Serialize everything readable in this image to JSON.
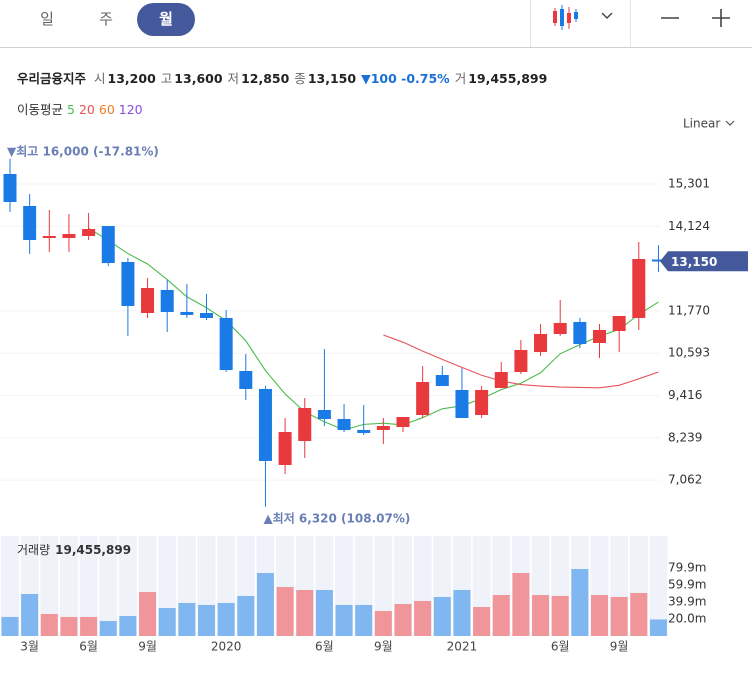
{
  "tabs": [
    "일",
    "주",
    "월"
  ],
  "selected_tab": 2,
  "header": {
    "name": "우리금융지주",
    "fields": [
      {
        "label": "시",
        "value": "13,200"
      },
      {
        "label": "고",
        "value": "13,600"
      },
      {
        "label": "저",
        "value": "12,850"
      },
      {
        "label": "종",
        "value": "13,150"
      }
    ],
    "change": "▼100 -0.75%",
    "volume_label": "거",
    "volume_value": "19,455,899"
  },
  "ma_title": "이동평균",
  "scale_mode": "Linear",
  "chart_data": {
    "type": "candlestick",
    "categories": [
      null,
      "3월",
      null,
      null,
      "6월",
      null,
      null,
      "9월",
      null,
      null,
      null,
      "2020",
      null,
      null,
      null,
      null,
      "6월",
      null,
      null,
      "9월",
      null,
      null,
      null,
      "2021",
      null,
      null,
      null,
      null,
      "6월",
      null,
      null,
      "9월",
      null,
      null
    ],
    "open": [
      15579,
      14689,
      13799,
      13799,
      13854,
      14132,
      13131,
      11712,
      12352,
      11740,
      11712,
      11573,
      10098,
      9598,
      7483,
      8151,
      9013,
      8763,
      8457,
      8457,
      8540,
      8874,
      9987,
      9570,
      8874,
      9626,
      10070,
      10627,
      11128,
      11462,
      10877,
      11211,
      11573,
      13200
    ],
    "high": [
      16000,
      15023,
      14578,
      14466,
      14494,
      14132,
      13242,
      12686,
      12630,
      12519,
      12241,
      11796,
      10571,
      9681,
      8790,
      9347,
      10710,
      9180,
      9152,
      8790,
      8818,
      10237,
      10237,
      10181,
      9681,
      10348,
      10961,
      11406,
      12074,
      11573,
      11406,
      11629,
      13687,
      13600
    ],
    "low": [
      14522,
      13354,
      13409,
      13409,
      13743,
      13020,
      11072,
      11573,
      11184,
      11573,
      11517,
      10070,
      9292,
      6320,
      7233,
      7678,
      8568,
      8401,
      8318,
      8068,
      8401,
      8790,
      9681,
      8790,
      8790,
      9626,
      10015,
      10516,
      11072,
      10738,
      10460,
      10627,
      11239,
      12850
    ],
    "close": [
      14800,
      13743,
      13854,
      13910,
      14049,
      13103,
      11907,
      12407,
      11740,
      11657,
      11573,
      10126,
      9598,
      7595,
      8401,
      9069,
      8763,
      8457,
      8374,
      8568,
      8818,
      9792,
      9681,
      8790,
      9570,
      10070,
      10683,
      11128,
      11434,
      10850,
      11239,
      11629,
      13214,
      13150
    ],
    "up_color": "#e8393d",
    "down_color": "#1a7ae6",
    "ylim": [
      5674,
      16386
    ],
    "yticks": [
      {
        "value": 15301,
        "label": "15,301"
      },
      {
        "value": 14124,
        "label": "14,124"
      },
      {
        "value": 11770,
        "label": "11,770"
      },
      {
        "value": 10593,
        "label": "10,593"
      },
      {
        "value": 9416,
        "label": "9,416"
      },
      {
        "value": 8239,
        "label": "8,239"
      },
      {
        "value": 7062,
        "label": "7,062"
      }
    ],
    "last_price_label": "13,150",
    "max_annotation": "▼최고 16,000 (-17.81%)",
    "min_annotation": "▲최저 6,320 (108.07%)",
    "series": [
      {
        "name": "5",
        "color": "#4cbc4c",
        "values": [
          null,
          null,
          null,
          null,
          14071,
          13732,
          13365,
          13075,
          12641,
          12163,
          11857,
          11501,
          10939,
          10110,
          9459,
          8958,
          8685,
          8457,
          8613,
          8646,
          8596,
          8802,
          9047,
          9130,
          9330,
          9581,
          9759,
          10048,
          10577,
          10833,
          11067,
          11256,
          11673,
          12016
        ]
      },
      {
        "name": "20",
        "color": "#e8545a",
        "values": [
          null,
          null,
          null,
          null,
          null,
          null,
          null,
          null,
          null,
          null,
          null,
          null,
          null,
          null,
          null,
          null,
          null,
          null,
          null,
          11100,
          10900,
          10650,
          10420,
          10200,
          9980,
          9820,
          9720,
          9680,
          9650,
          9640,
          9630,
          9700,
          9880,
          10070
        ]
      },
      {
        "name": "60",
        "color": "#f07c28",
        "values": [
          null,
          null,
          null,
          null,
          null,
          null,
          null,
          null,
          null,
          null,
          null,
          null,
          null,
          null,
          null,
          null,
          null,
          null,
          null,
          null,
          null,
          null,
          null,
          null,
          null,
          null,
          null,
          null,
          null,
          null,
          null,
          null,
          null,
          null
        ]
      },
      {
        "name": "120",
        "color": "#8a4fd8",
        "values": [
          null,
          null,
          null,
          null,
          null,
          null,
          null,
          null,
          null,
          null,
          null,
          null,
          null,
          null,
          null,
          null,
          null,
          null,
          null,
          null,
          null,
          null,
          null,
          null,
          null,
          null,
          null,
          null,
          null,
          null,
          null,
          null,
          null,
          null
        ]
      }
    ],
    "volume": {
      "name": "거래량",
      "value_label": "19,455,899",
      "values": [
        22.4,
        49.4,
        25.9,
        22.4,
        22.4,
        17.6,
        23.5,
        51.8,
        32.9,
        38.8,
        36.5,
        38.8,
        47.1,
        74.1,
        57.6,
        54.1,
        54.1,
        36.5,
        36.5,
        29.4,
        37.6,
        41.2,
        45.9,
        54.1,
        34.1,
        48.2,
        74.1,
        48.2,
        47.1,
        78.8,
        48.2,
        45.9,
        50.6,
        19.46
      ],
      "up_color": "#f0959a",
      "down_color": "#80b7f0",
      "ylim": [
        0,
        117.6
      ],
      "yticks": [
        {
          "value": 79.9,
          "label": "79.9m"
        },
        {
          "value": 59.9,
          "label": "59.9m"
        },
        {
          "value": 39.9,
          "label": "39.9m"
        },
        {
          "value": 20.0,
          "label": "20.0m"
        }
      ]
    }
  }
}
